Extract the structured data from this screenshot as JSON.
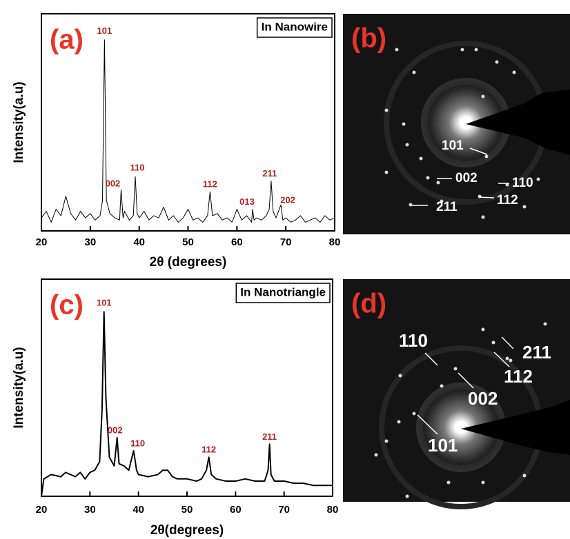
{
  "chart_data": [
    {
      "type": "line",
      "panel_label": "(a)",
      "inset_label": "In Nanowire",
      "x_label": "2θ (degrees)",
      "y_label": "Intensity(a.u)",
      "xlim": [
        20,
        80
      ],
      "xticks": [
        20,
        30,
        40,
        50,
        60,
        70,
        80
      ],
      "ylim": [
        0,
        100
      ],
      "color": "#000000",
      "x": [
        20,
        21,
        22,
        23,
        24,
        25,
        26,
        27,
        28,
        29,
        30,
        31,
        32,
        32.5,
        32.9,
        33.3,
        34,
        35,
        36,
        36.3,
        36.7,
        37,
        38,
        38.8,
        39.2,
        39.6,
        40,
        41,
        42,
        43,
        44,
        45,
        46,
        47,
        48,
        49,
        50,
        51,
        52,
        53,
        54,
        54.5,
        55,
        56,
        57,
        58,
        59,
        60,
        61,
        62,
        63,
        63.2,
        63.5,
        64,
        65,
        66,
        66.6,
        67,
        67.4,
        68,
        69,
        69.4,
        70,
        71,
        72,
        73,
        74,
        75,
        76,
        77,
        78,
        79,
        80
      ],
      "values": [
        6,
        9,
        4,
        10,
        7,
        16,
        8,
        5,
        9,
        6,
        8,
        5,
        7,
        14,
        88,
        14,
        8,
        6,
        5,
        19,
        6,
        9,
        5,
        7,
        25,
        8,
        6,
        9,
        5,
        7,
        6,
        11,
        5,
        7,
        4,
        6,
        10,
        5,
        6,
        4,
        7,
        18,
        7,
        8,
        5,
        6,
        4,
        10,
        5,
        7,
        4,
        10,
        5,
        6,
        5,
        7,
        10,
        23,
        9,
        6,
        12,
        5,
        6,
        4,
        5,
        7,
        4,
        5,
        6,
        4,
        7,
        5,
        6
      ],
      "annotations": [
        {
          "text": "101",
          "x": 32.9,
          "y": 88
        },
        {
          "text": "002",
          "x": 36.3,
          "y": 19
        },
        {
          "text": "110",
          "x": 39.2,
          "y": 25
        },
        {
          "text": "112",
          "x": 54.5,
          "y": 18
        },
        {
          "text": "013",
          "x": 63.2,
          "y": 10
        },
        {
          "text": "211",
          "x": 67,
          "y": 23
        },
        {
          "text": "202",
          "x": 69,
          "y": 12
        }
      ]
    },
    {
      "type": "line",
      "panel_label": "(c)",
      "inset_label": "In Nanotriangle",
      "x_label": "2θ(degrees)",
      "y_label": "Intensity(a.u)",
      "xlim": [
        20,
        80
      ],
      "xticks": [
        20,
        30,
        40,
        50,
        60,
        70,
        80
      ],
      "ylim": [
        0,
        100
      ],
      "color": "#000000",
      "x": [
        20,
        20.5,
        22,
        24,
        25,
        26,
        27,
        28,
        29,
        30,
        31,
        32,
        32.5,
        32.9,
        33.3,
        34,
        35,
        35.6,
        36,
        37,
        38,
        39,
        39.6,
        40,
        42,
        44,
        45,
        46,
        47,
        48,
        50,
        52,
        53,
        54,
        54.5,
        55,
        56,
        58,
        60,
        62,
        64,
        66,
        66.7,
        67,
        67.3,
        68,
        70,
        72,
        74,
        76,
        78,
        80
      ],
      "values": [
        0,
        8,
        10,
        9,
        11,
        10,
        9,
        11,
        8,
        11,
        12,
        16,
        40,
        85,
        45,
        18,
        14,
        27,
        15,
        14,
        12,
        21,
        12,
        10,
        9,
        10,
        12,
        12,
        9,
        8,
        8,
        7,
        8,
        12,
        18,
        10,
        8,
        7,
        7,
        8,
        7,
        7,
        12,
        24,
        10,
        7,
        7,
        6,
        6,
        5,
        5,
        5
      ],
      "annotations": [
        {
          "text": "101",
          "x": 32.9,
          "y": 85
        },
        {
          "text": "002",
          "x": 35.6,
          "y": 27
        },
        {
          "text": "110",
          "x": 39,
          "y": 21
        },
        {
          "text": "112",
          "x": 54.5,
          "y": 18
        },
        {
          "text": "211",
          "x": 67,
          "y": 24
        }
      ]
    }
  ],
  "saed_panels": [
    {
      "panel_label": "(b)",
      "labels": [
        "101",
        "002",
        "110",
        "112",
        "211"
      ]
    },
    {
      "panel_label": "(d)",
      "labels": [
        "110",
        "002",
        "112",
        "211",
        "101"
      ]
    }
  ]
}
